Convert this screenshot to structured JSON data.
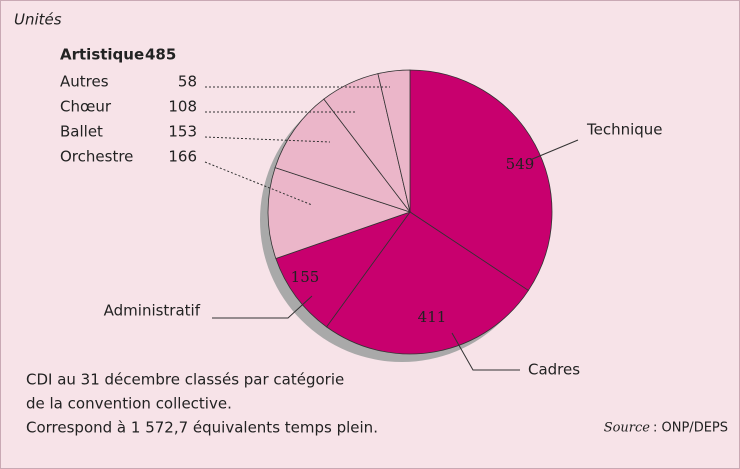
{
  "chart_data": {
    "type": "pie",
    "title": "Unités",
    "categories": [
      "Technique",
      "Cadres",
      "Administratif",
      "Orchestre",
      "Ballet",
      "Chœur",
      "Autres"
    ],
    "values": [
      549,
      411,
      155,
      166,
      153,
      108,
      58
    ],
    "colors": [
      "#c8006e",
      "#c8006e",
      "#c8006e",
      "#ebb6c9",
      "#ebb6c9",
      "#ebb6c9",
      "#ebb6c9"
    ],
    "group": {
      "name": "Artistique",
      "value": 485
    },
    "notes": [
      "CDI au 31 décembre classés par catégorie",
      "de la convention collective.",
      "Correspond à 1 572,7 équivalents temps plein."
    ],
    "source_label": "Source",
    "source_text": ": ONP/DEPS"
  }
}
